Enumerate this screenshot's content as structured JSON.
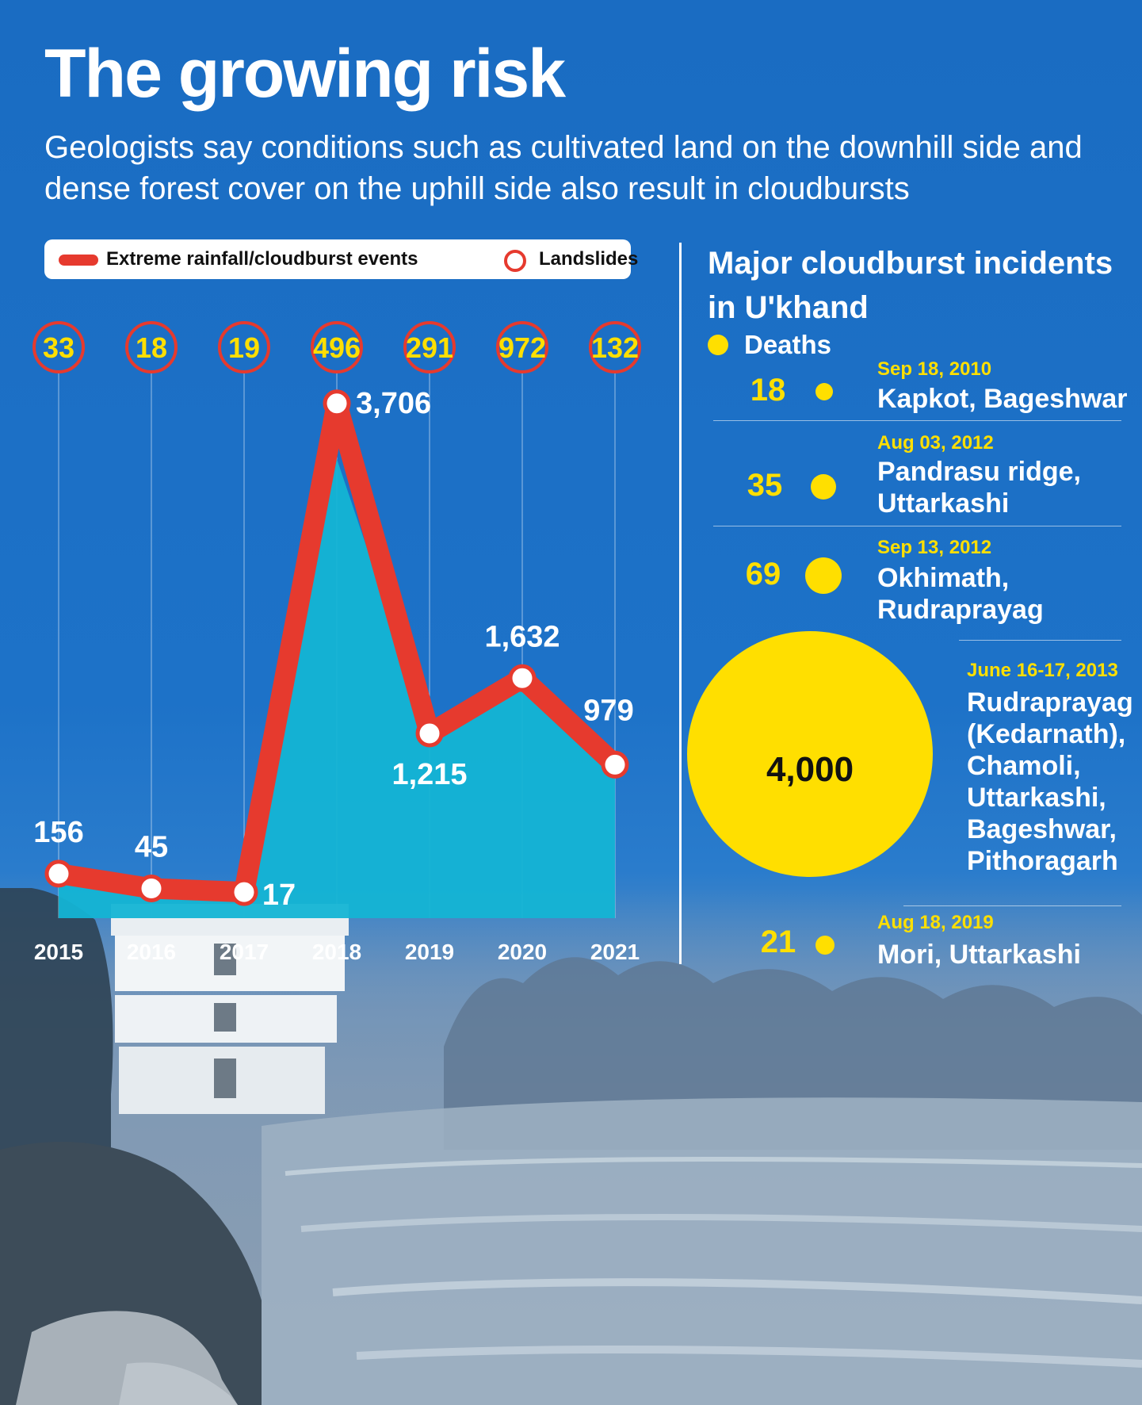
{
  "title": "The growing risk",
  "subtitle": "Geologists say conditions such as cultivated land on the downhill side and dense forest cover on the uphill side also result in cloudbursts",
  "legend": {
    "line_label": "Extreme rainfall/cloudburst events",
    "circle_label": "Landslides"
  },
  "colors": {
    "line": "#e63a2e",
    "area": "#14b4d4",
    "bubble": "#ffdf00",
    "background": "#1b6fc4"
  },
  "chart_data": {
    "type": "line",
    "categories": [
      "2015",
      "2016",
      "2017",
      "2018",
      "2019",
      "2020",
      "2021"
    ],
    "series": [
      {
        "name": "Extreme rainfall/cloudburst events",
        "values": [
          156,
          45,
          17,
          3706,
          1215,
          1632,
          979
        ]
      },
      {
        "name": "Landslides",
        "values": [
          33,
          18,
          19,
          496,
          291,
          972,
          132
        ]
      }
    ],
    "line_labels": [
      "156",
      "45",
      "17",
      "3,706",
      "1,215",
      "1,632",
      "979"
    ],
    "landslide_labels": [
      "33",
      "18",
      "19",
      "496",
      "291",
      "972",
      "132"
    ],
    "ylim": [
      0,
      4000
    ],
    "grid": "vertical",
    "legend_position": "top"
  },
  "incidents": {
    "title": "Major cloudburst incidents in U'khand",
    "key_label": "Deaths",
    "items": [
      {
        "deaths": 18,
        "deaths_label": "18",
        "date": "Sep 18, 2010",
        "place": "Kapkot, Bageshwar"
      },
      {
        "deaths": 35,
        "deaths_label": "35",
        "date": "Aug 03, 2012",
        "place": "Pandrasu ridge, Uttarkashi"
      },
      {
        "deaths": 69,
        "deaths_label": "69",
        "date": "Sep 13, 2012",
        "place": "Okhimath, Rudraprayag"
      },
      {
        "deaths": 4000,
        "deaths_label": "4,000",
        "date": "June 16-17, 2013",
        "place": "Rudraprayag (Kedarnath), Chamoli, Uttarkashi, Bageshwar, Pithoragarh"
      },
      {
        "deaths": 21,
        "deaths_label": "21",
        "date": "Aug 18, 2019",
        "place": "Mori, Uttarkashi"
      }
    ]
  }
}
